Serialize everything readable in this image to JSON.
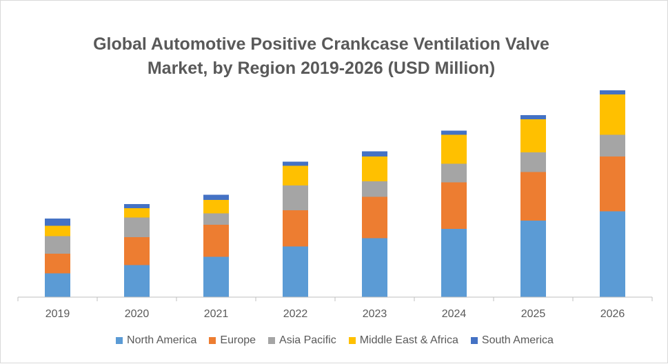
{
  "chart_data": {
    "type": "bar",
    "stacked": true,
    "title_line1": "Global Automotive Positive Crankcase Ventilation Valve",
    "title_line2": "Market, by Region 2019-2026 (USD Million)",
    "xlabel": "",
    "ylabel": "",
    "grid": false,
    "legend_position": "bottom",
    "ylim": [
      0,
      100
    ],
    "categories": [
      "2019",
      "2020",
      "2021",
      "2022",
      "2023",
      "2024",
      "2025",
      "2026"
    ],
    "series": [
      {
        "name": "North America",
        "color": "#5B9BD5",
        "values": [
          11.5,
          15.5,
          19.5,
          24.5,
          28.5,
          33.0,
          37.0,
          41.5
        ]
      },
      {
        "name": "Europe",
        "color": "#ED7D31",
        "values": [
          9.5,
          13.5,
          15.5,
          17.5,
          20.0,
          22.5,
          23.5,
          26.5
        ]
      },
      {
        "name": "Asia Pacific",
        "color": "#A5A5A5",
        "values": [
          8.5,
          9.5,
          5.5,
          12.0,
          7.5,
          9.0,
          9.5,
          10.5
        ]
      },
      {
        "name": "Middle East & Africa",
        "color": "#FFC000",
        "values": [
          5.0,
          4.5,
          6.5,
          9.5,
          12.0,
          14.0,
          16.0,
          19.5
        ]
      },
      {
        "name": "South America",
        "color": "#4472C4",
        "values": [
          3.5,
          2.0,
          2.5,
          2.0,
          2.5,
          2.0,
          2.0,
          2.0
        ]
      }
    ]
  }
}
